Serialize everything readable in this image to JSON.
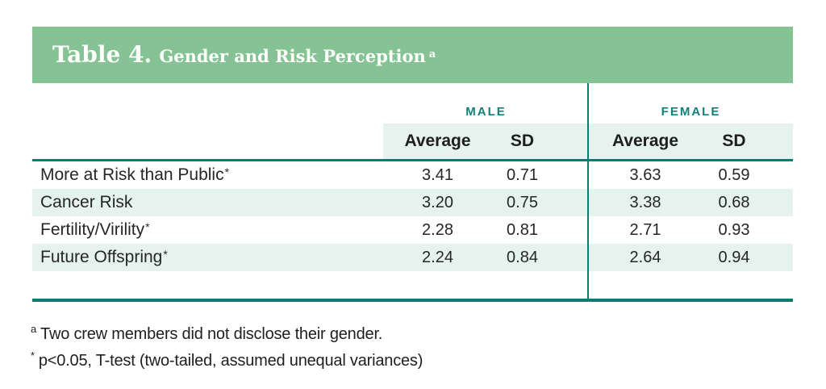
{
  "table": {
    "title_prefix": "Table 4.",
    "title": "Gender and Risk Perception",
    "title_superscript": "a",
    "groups": [
      {
        "label": "MALE"
      },
      {
        "label": "FEMALE"
      }
    ],
    "col_headers": {
      "average": "Average",
      "sd": "SD"
    },
    "rows": [
      {
        "label": "More at Risk than Public",
        "label_superscript": "*",
        "male_avg": "3.41",
        "male_sd": "0.71",
        "female_avg": "3.63",
        "female_sd": "0.59"
      },
      {
        "label": "Cancer Risk",
        "label_superscript": "",
        "male_avg": "3.20",
        "male_sd": "0.75",
        "female_avg": "3.38",
        "female_sd": "0.68"
      },
      {
        "label": "Fertility/Virility",
        "label_superscript": "*",
        "male_avg": "2.28",
        "male_sd": "0.81",
        "female_avg": "2.71",
        "female_sd": "0.93"
      },
      {
        "label": "Future Offspring",
        "label_superscript": "*",
        "male_avg": "2.24",
        "male_sd": "0.84",
        "female_avg": "2.64",
        "female_sd": "0.94"
      }
    ]
  },
  "footnotes": [
    {
      "marker": "a",
      "text": "Two crew members did not disclose their gender."
    },
    {
      "marker": "*",
      "text": "p<0.05, T-test (two-tailed, assumed unequal variances)"
    }
  ],
  "colors": {
    "green": "#85c394",
    "teal": "#108278",
    "teal-line": "#0a7d73",
    "mint": "#e5f2ee"
  }
}
